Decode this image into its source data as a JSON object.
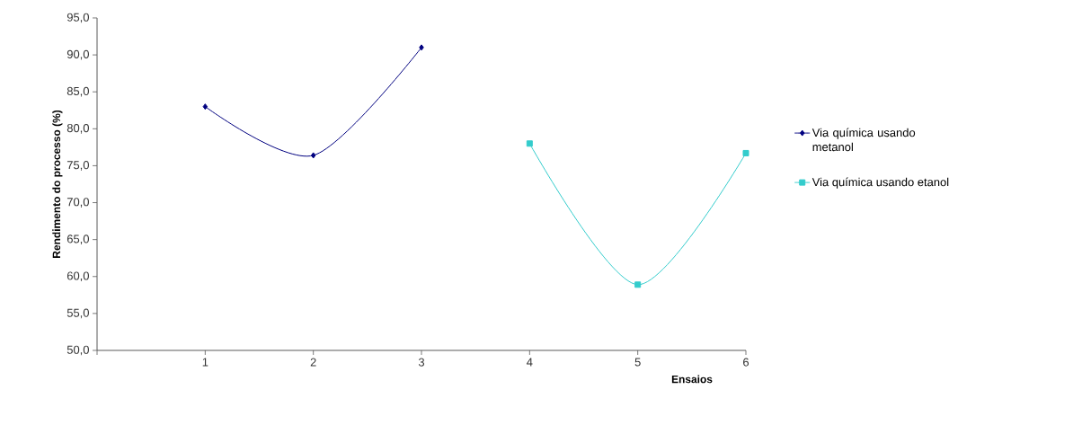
{
  "chart_data": {
    "type": "line",
    "xlabel": "Ensaios",
    "ylabel": "Rendimento do processo (%)",
    "categories": [
      "1",
      "2",
      "3",
      "4",
      "5",
      "6"
    ],
    "series": [
      {
        "name": "Via química usando metanol",
        "color": "#000080",
        "marker": "diamond",
        "values": [
          83.0,
          76.4,
          91.0,
          null,
          null,
          null
        ]
      },
      {
        "name": "Via química usando etanol",
        "color": "#33cccc",
        "marker": "square",
        "values": [
          null,
          null,
          null,
          78.0,
          58.9,
          76.7
        ]
      }
    ],
    "ylim": [
      50,
      95
    ],
    "yticks": [
      {
        "value": 50,
        "label": "50,0"
      },
      {
        "value": 55,
        "label": "55,0"
      },
      {
        "value": 60,
        "label": "60,0"
      },
      {
        "value": 65,
        "label": "65,0"
      },
      {
        "value": 70,
        "label": "70,0"
      },
      {
        "value": 75,
        "label": "75,0"
      },
      {
        "value": 80,
        "label": "80,0"
      },
      {
        "value": 85,
        "label": "85,0"
      },
      {
        "value": 90,
        "label": "90,0"
      },
      {
        "value": 95,
        "label": "95,0"
      }
    ],
    "grid": false,
    "legend": "right",
    "line_style": "solid"
  }
}
